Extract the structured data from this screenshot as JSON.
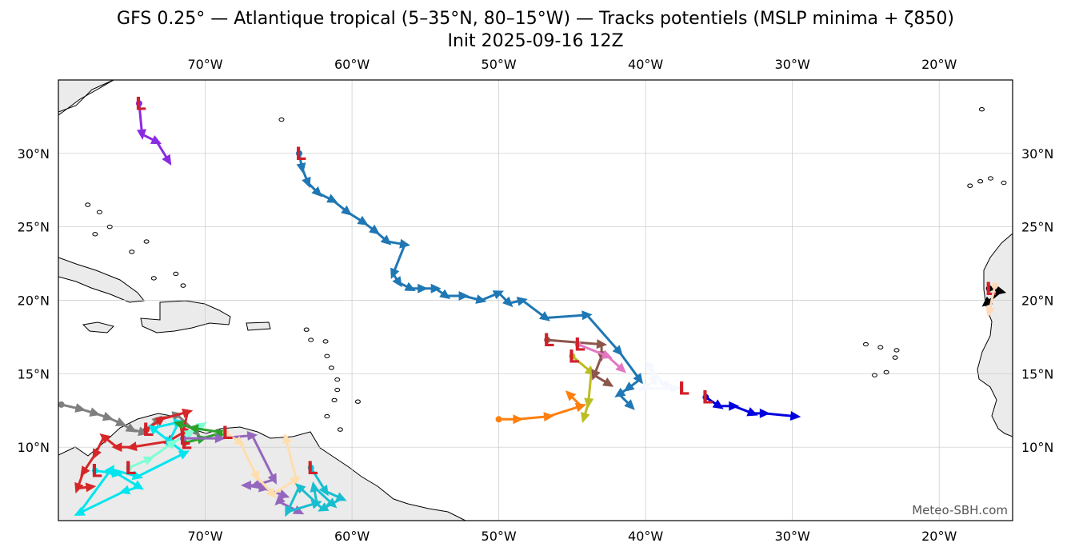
{
  "title": {
    "line1": "GFS 0.25° — Atlantique tropical (5–35°N, 80–15°W) — Tracks potentiels (MSLP minima + ζ850)",
    "line2": "Init 2025-09-16 12Z"
  },
  "extent": {
    "lon_min": -80,
    "lon_max": -15,
    "lat_min": 5,
    "lat_max": 35
  },
  "x_ticks": [
    {
      "lon": -70,
      "label": "70°W"
    },
    {
      "lon": -60,
      "label": "60°W"
    },
    {
      "lon": -50,
      "label": "50°W"
    },
    {
      "lon": -40,
      "label": "40°W"
    },
    {
      "lon": -30,
      "label": "30°W"
    },
    {
      "lon": -20,
      "label": "20°W"
    }
  ],
  "y_ticks": [
    {
      "lat": 30,
      "label": "30°N"
    },
    {
      "lat": 25,
      "label": "25°N"
    },
    {
      "lat": 20,
      "label": "20°N"
    },
    {
      "lat": 15,
      "label": "15°N"
    },
    {
      "lat": 10,
      "label": "10°N"
    }
  ],
  "credit": "Meteo-SBH.com",
  "low_symbol": "L",
  "colors": {
    "land": "#ebebeb",
    "coast": "#000000",
    "grid": "#c8c8c8",
    "low": "#d0202a"
  },
  "tracks": [
    {
      "color": "#1f77b4",
      "start_marker": "L",
      "points": [
        [
          -63.6,
          30.0
        ],
        [
          -63.4,
          29.0
        ],
        [
          -63.0,
          28.0
        ],
        [
          -62.3,
          27.3
        ],
        [
          -61.3,
          26.8
        ],
        [
          -60.3,
          26.0
        ],
        [
          -59.2,
          25.3
        ],
        [
          -58.4,
          24.7
        ],
        [
          -57.6,
          24.0
        ],
        [
          -56.4,
          23.8
        ],
        [
          -57.2,
          21.8
        ],
        [
          -56.8,
          21.2
        ],
        [
          -56.0,
          20.8
        ],
        [
          -55.2,
          20.8
        ],
        [
          -54.3,
          20.8
        ],
        [
          -53.6,
          20.3
        ],
        [
          -52.4,
          20.3
        ],
        [
          -51.2,
          20.0
        ],
        [
          -50.0,
          20.5
        ],
        [
          -49.3,
          19.8
        ],
        [
          -48.4,
          20.0
        ],
        [
          -46.8,
          18.8
        ],
        [
          -44.0,
          19.0
        ],
        [
          -41.8,
          16.5
        ],
        [
          -40.4,
          14.6
        ],
        [
          -41.2,
          14.0
        ],
        [
          -41.8,
          13.6
        ],
        [
          -41.0,
          12.8
        ]
      ]
    },
    {
      "color": "#8a2be2",
      "start_marker": "L",
      "points": [
        [
          -74.5,
          33.4
        ],
        [
          -74.3,
          31.3
        ],
        [
          -73.3,
          30.8
        ],
        [
          -72.5,
          29.5
        ]
      ]
    },
    {
      "color": "#0000e0",
      "start_marker": "L",
      "points": [
        [
          -35.9,
          13.4
        ],
        [
          -35.0,
          12.8
        ],
        [
          -34.0,
          12.8
        ],
        [
          -32.7,
          12.3
        ],
        [
          -31.9,
          12.3
        ],
        [
          -29.8,
          12.1
        ]
      ]
    },
    {
      "color": "#f5f9ff",
      "start_marker": "L",
      "points": [
        [
          -37.5,
          14.0
        ],
        [
          -38.8,
          14.3
        ],
        [
          -39.8,
          15.6
        ],
        [
          -39.4,
          14.5
        ],
        [
          -40.2,
          14.0
        ],
        [
          -38.0,
          14.0
        ]
      ]
    },
    {
      "color": "#ff7f0e",
      "start_marker": "none",
      "points": [
        [
          -50.0,
          11.9
        ],
        [
          -48.7,
          11.9
        ],
        [
          -46.6,
          12.1
        ],
        [
          -44.4,
          12.8
        ],
        [
          -45.2,
          13.6
        ]
      ]
    },
    {
      "color": "#bcbd22",
      "start_marker": "L",
      "points": [
        [
          -45.0,
          16.2
        ],
        [
          -43.7,
          15.1
        ],
        [
          -43.9,
          13.0
        ],
        [
          -44.2,
          12.0
        ]
      ]
    },
    {
      "color": "#8c564b",
      "start_marker": "L",
      "points": [
        [
          -46.7,
          17.3
        ],
        [
          -43.0,
          17.0
        ],
        [
          -43.0,
          16.2
        ],
        [
          -43.5,
          14.9
        ],
        [
          -42.5,
          14.3
        ]
      ]
    },
    {
      "color": "#e377c2",
      "start_marker": "L",
      "points": [
        [
          -44.6,
          17.0
        ],
        [
          -42.6,
          16.2
        ],
        [
          -41.6,
          15.3
        ]
      ]
    },
    {
      "color": "#7f7f7f",
      "start_marker": "none",
      "points": [
        [
          -79.8,
          12.9
        ],
        [
          -78.5,
          12.6
        ],
        [
          -77.5,
          12.3
        ],
        [
          -76.6,
          12.0
        ],
        [
          -75.7,
          11.6
        ],
        [
          -75.0,
          11.2
        ],
        [
          -74.2,
          11.0
        ],
        [
          -73.2,
          11.9
        ],
        [
          -71.9,
          12.2
        ],
        [
          -70.6,
          11.0
        ]
      ]
    },
    {
      "color": "#d62728",
      "start_marker": "L",
      "points": [
        [
          -74.0,
          11.2
        ],
        [
          -73.0,
          11.9
        ],
        [
          -71.2,
          12.4
        ],
        [
          -71.5,
          11.0
        ],
        [
          -72.5,
          10.4
        ],
        [
          -75.0,
          10.0
        ],
        [
          -76.0,
          10.0
        ],
        [
          -76.9,
          10.7
        ],
        [
          -77.5,
          9.5
        ],
        [
          -78.3,
          8.3
        ],
        [
          -78.7,
          7.2
        ],
        [
          -77.8,
          7.3
        ]
      ]
    },
    {
      "color": "#00e5ee",
      "start_marker": "L",
      "points": [
        [
          -77.5,
          8.4
        ],
        [
          -76.0,
          8.2
        ],
        [
          -74.5,
          7.3
        ],
        [
          -75.5,
          7.0
        ],
        [
          -78.6,
          5.5
        ],
        [
          -76.4,
          8.5
        ],
        [
          -74.6,
          8.0
        ],
        [
          -71.4,
          9.6
        ],
        [
          -73.6,
          11.3
        ],
        [
          -71.8,
          11.7
        ],
        [
          -72.5,
          10.3
        ]
      ]
    },
    {
      "color": "#7fffd4",
      "start_marker": "L",
      "points": [
        [
          -75.2,
          8.6
        ],
        [
          -73.8,
          9.2
        ],
        [
          -72.2,
          10.3
        ],
        [
          -71.0,
          11.0
        ],
        [
          -70.2,
          11.5
        ]
      ]
    },
    {
      "color": "#2ca02c",
      "start_marker": "L",
      "points": [
        [
          -71.4,
          10.3
        ],
        [
          -70.2,
          10.6
        ],
        [
          -68.8,
          11.0
        ],
        [
          -70.8,
          11.3
        ],
        [
          -71.8,
          11.6
        ]
      ]
    },
    {
      "color": "#9467bd",
      "start_marker": "L",
      "points": [
        [
          -71.5,
          10.6
        ],
        [
          -69.0,
          10.6
        ],
        [
          -66.8,
          10.8
        ],
        [
          -65.3,
          7.8
        ],
        [
          -66.6,
          7.4
        ],
        [
          -67.2,
          7.4
        ],
        [
          -66.0,
          7.2
        ],
        [
          -64.6,
          6.7
        ],
        [
          -65.0,
          6.3
        ],
        [
          -63.6,
          5.6
        ]
      ]
    },
    {
      "color": "#ffdead",
      "start_marker": "L",
      "points": [
        [
          -68.6,
          11.0
        ],
        [
          -67.6,
          10.3
        ],
        [
          -66.5,
          8.0
        ],
        [
          -65.4,
          6.8
        ],
        [
          -63.8,
          7.8
        ],
        [
          -64.5,
          10.6
        ]
      ]
    },
    {
      "color": "#17becf",
      "start_marker": "L",
      "points": [
        [
          -62.8,
          8.6
        ],
        [
          -61.8,
          7.0
        ],
        [
          -60.7,
          6.5
        ],
        [
          -62.0,
          5.8
        ],
        [
          -63.6,
          7.3
        ],
        [
          -64.4,
          5.6
        ],
        [
          -62.4,
          6.2
        ],
        [
          -62.6,
          7.3
        ],
        [
          -61.3,
          6.1
        ]
      ]
    },
    {
      "color": "#000000",
      "start_marker": "L",
      "points": [
        [
          -16.6,
          20.8
        ],
        [
          -15.8,
          20.6
        ],
        [
          -16.8,
          19.8
        ]
      ]
    },
    {
      "color": "#ffdab9",
      "start_marker": "none",
      "points": [
        [
          -16.2,
          21.0
        ],
        [
          -16.6,
          19.2
        ]
      ]
    }
  ]
}
